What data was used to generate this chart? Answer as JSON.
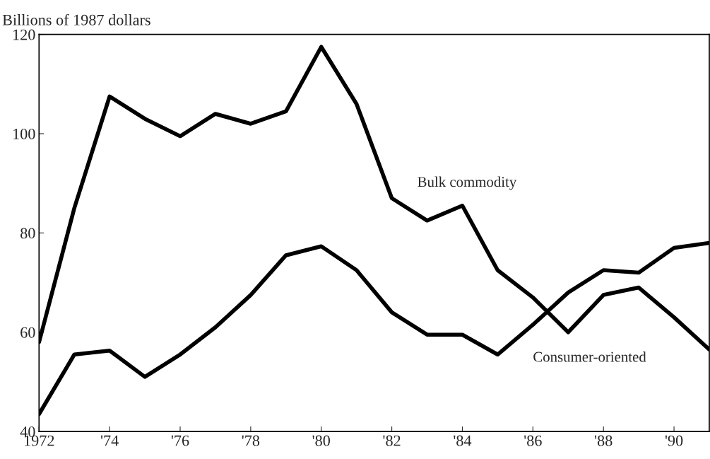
{
  "chart_data": {
    "type": "line",
    "ylabel": "Billions of 1987 dollars",
    "x": [
      1972,
      1973,
      1974,
      1975,
      1976,
      1977,
      1978,
      1979,
      1980,
      1981,
      1982,
      1983,
      1984,
      1985,
      1986,
      1987,
      1988,
      1989,
      1990,
      1991
    ],
    "series": [
      {
        "name": "Bulk commodity",
        "color": "#000000",
        "values": [
          58,
          85,
          107.5,
          103,
          99.5,
          104,
          102,
          104.5,
          117.5,
          106,
          87,
          82.5,
          85.5,
          72.5,
          67,
          60,
          67.5,
          69,
          63,
          56.5
        ]
      },
      {
        "name": "Consumer-oriented",
        "color": "#000000",
        "values": [
          43.5,
          55.5,
          56.3,
          51,
          55.5,
          61,
          67.5,
          75.5,
          77.3,
          72.5,
          64,
          59.5,
          59.5,
          55.5,
          61.5,
          68,
          72.5,
          72,
          77,
          78
        ]
      }
    ],
    "xlim": [
      1972,
      1991
    ],
    "xticks": [
      {
        "value": 1972,
        "label": "1972"
      },
      {
        "value": 1974,
        "label": "'74"
      },
      {
        "value": 1976,
        "label": "'76"
      },
      {
        "value": 1978,
        "label": "'78"
      },
      {
        "value": 1980,
        "label": "'80"
      },
      {
        "value": 1982,
        "label": "'82"
      },
      {
        "value": 1984,
        "label": "'84"
      },
      {
        "value": 1986,
        "label": "'86"
      },
      {
        "value": 1988,
        "label": "'88"
      },
      {
        "value": 1990,
        "label": "'90"
      }
    ],
    "ylim": [
      40,
      120
    ],
    "yticks": [
      40,
      60,
      80,
      100,
      120
    ],
    "grid": false,
    "legend": false,
    "line_style": "solid",
    "marker": "none"
  }
}
